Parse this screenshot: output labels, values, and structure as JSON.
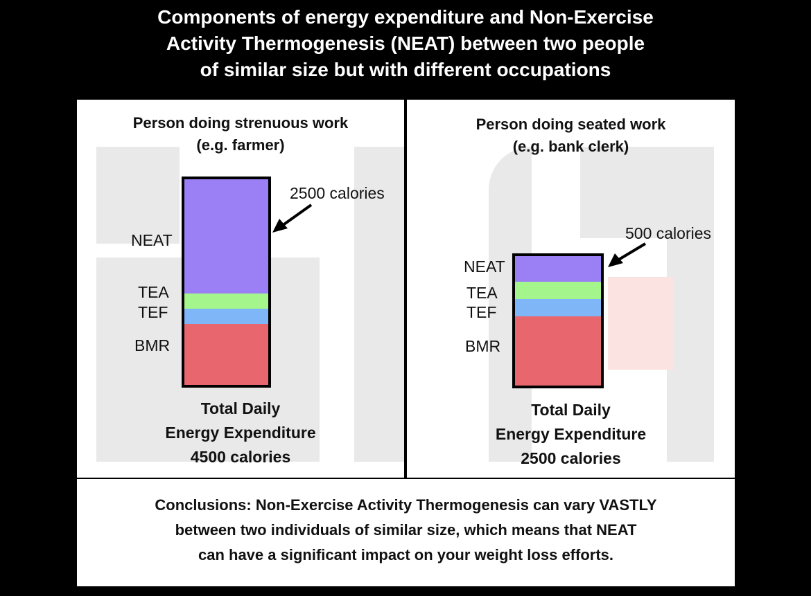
{
  "title": {
    "line1": "Components of energy expenditure and Non-Exercise",
    "line2": "Activity Thermogenesis (NEAT) between two people",
    "line3": "of similar size but with different occupations"
  },
  "left": {
    "heading_line1": "Person doing strenuous work",
    "heading_line2": "(e.g. farmer)",
    "callout": "2500 calories",
    "labels": {
      "neat": "NEAT",
      "tea": "TEA",
      "tef": "TEF",
      "bmr": "BMR"
    },
    "total_line1": "Total Daily",
    "total_line2": "Energy Expenditure",
    "total_line3": "4500 calories",
    "components": {
      "neat": 2500,
      "tea": 330,
      "tef": 340,
      "bmr": 1330
    }
  },
  "right": {
    "heading_line1": "Person doing seated work",
    "heading_line2": "(e.g. bank clerk)",
    "callout": "500 calories",
    "labels": {
      "neat": "NEAT",
      "tea": "TEA",
      "tef": "TEF",
      "bmr": "BMR"
    },
    "total_line1": "Total Daily",
    "total_line2": "Energy Expenditure",
    "total_line3": "2500 calories",
    "components": {
      "neat": 500,
      "tea": 330,
      "tef": 340,
      "bmr": 1330
    }
  },
  "conclusion": {
    "line1": "Conclusions: Non-Exercise Activity Thermogenesis can vary VASTLY",
    "line2": "between two individuals of similar size, which means that NEAT",
    "line3": "can have a significant impact on your weight loss efforts."
  },
  "colors": {
    "neat": "#9b7ff5",
    "tea": "#a3f58c",
    "tef": "#7fb6f7",
    "bmr": "#e8666d"
  }
}
